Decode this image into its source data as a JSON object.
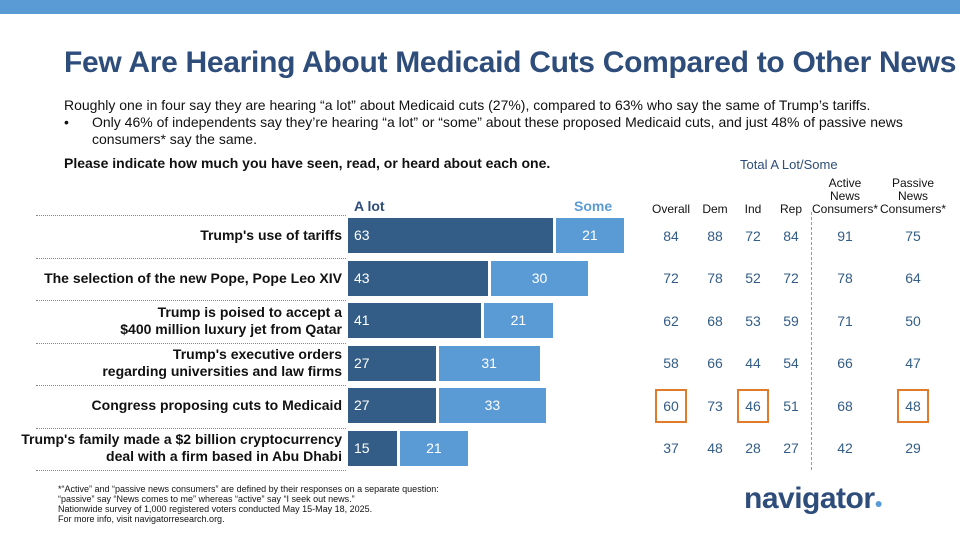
{
  "title": "Few Are Hearing About Medicaid Cuts Compared to Other News",
  "subtitle": "Roughly one in four say they are hearing “a lot” about Medicaid cuts (27%), compared to 63% who say the same of Trump’s tariffs.",
  "bullet_marker": "•",
  "bullet": "Only 46% of independents say they’re hearing “a lot” or “some” about these proposed Medicaid cuts, and just 48% of passive news consumers* say the same.",
  "question": "Please indicate how much you have seen, read, or heard about each one.",
  "colors": {
    "alot": "#335d86",
    "some": "#5b9bd5",
    "title": "#2e4d7b",
    "highlight": "#e07b2b"
  },
  "chart_data": {
    "type": "bar",
    "stacked": true,
    "orientation": "horizontal",
    "legend": [
      "A lot",
      "Some"
    ],
    "table_header": "Total A Lot/Some",
    "columns": [
      "Overall",
      "Dem",
      "Ind",
      "Rep",
      "Active News Consumers*",
      "Passive News Consumers*"
    ],
    "column_lines": [
      [
        "Overall"
      ],
      [
        "Dem"
      ],
      [
        "Ind"
      ],
      [
        "Rep"
      ],
      [
        "Active",
        "News",
        "Consumers*"
      ],
      [
        "Passive",
        "News",
        "Consumers*"
      ]
    ],
    "categories": [
      [
        "Trump's use of tariffs"
      ],
      [
        "The selection of the new Pope, Pope Leo XIV"
      ],
      [
        "Trump is poised to accept a",
        "$400 million luxury jet from Qatar"
      ],
      [
        "Trump's executive orders",
        "regarding universities and law firms"
      ],
      [
        "Congress proposing cuts to Medicaid"
      ],
      [
        "Trump's family made a $2 billion cryptocurrency",
        "deal with a firm based in Abu Dhabi"
      ]
    ],
    "series": [
      {
        "name": "A lot",
        "values": [
          63,
          43,
          41,
          27,
          27,
          15
        ]
      },
      {
        "name": "Some",
        "values": [
          21,
          30,
          21,
          31,
          33,
          21
        ]
      }
    ],
    "totals": [
      [
        84,
        88,
        72,
        84,
        91,
        75
      ],
      [
        72,
        78,
        52,
        72,
        78,
        64
      ],
      [
        62,
        68,
        53,
        59,
        71,
        50
      ],
      [
        58,
        66,
        44,
        54,
        66,
        47
      ],
      [
        60,
        73,
        46,
        51,
        68,
        48
      ],
      [
        37,
        48,
        28,
        27,
        42,
        29
      ]
    ],
    "highlighted": [
      [
        4,
        0
      ],
      [
        4,
        2
      ],
      [
        4,
        5
      ]
    ]
  },
  "footnote": [
    "*“Active” and “passive news consumers” are defined by their responses on a separate question:",
    "“passive” say “News comes to me” whereas “active” say “I seek out news.”",
    "Nationwide survey of 1,000 registered voters conducted May 15-May 18, 2025.",
    "For more info, visit navigatorresearch.org."
  ],
  "logo": {
    "text": "navigator",
    "mark": "●"
  }
}
